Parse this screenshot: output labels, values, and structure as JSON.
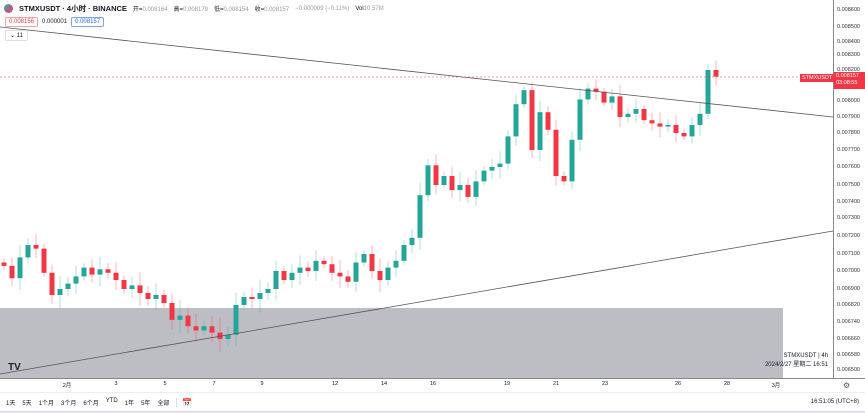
{
  "header": {
    "symbol_title": "STMXUSDT · 4小时 · BINANCE",
    "open_label": "开=",
    "open": "0.008164",
    "high_label": "高=",
    "high": "0.008179",
    "low_label": "低=",
    "low": "0.008154",
    "close_label": "收=",
    "close": "0.008157",
    "change": "−0.000009 (−0.11%)",
    "vol_label": "Vol",
    "vol": "10.57M"
  },
  "order": {
    "sell": "0.008156",
    "spread": "0.000001",
    "buy": "0.008157"
  },
  "indicators_toggle": {
    "label": "⌄ 11"
  },
  "price_axis": {
    "ticks": [
      "0.008600",
      "0.008500",
      "0.008400",
      "0.008300",
      "0.008200",
      "0.008000",
      "0.007900",
      "0.007800",
      "0.007700",
      "0.007600",
      "0.007500",
      "0.007400",
      "0.007300",
      "0.007200",
      "0.007100",
      "0.007000",
      "0.006900",
      "0.006820",
      "0.006740",
      "0.006660",
      "0.006580",
      "0.006500"
    ],
    "current_price": "0.008157",
    "countdown": "03:08:55",
    "symbol_tag": "STMXUSDT"
  },
  "time_axis": {
    "labels": [
      "2月",
      "3",
      "5",
      "7",
      "9",
      "12",
      "14",
      "16",
      "19",
      "21",
      "23",
      "26",
      "28",
      "3月"
    ]
  },
  "chart_data": {
    "type": "candlestick",
    "price_scale": 1e-06,
    "colors": {
      "up": "#26a69a",
      "down": "#f23645"
    },
    "close": [
      7030,
      6960,
      7080,
      7150,
      7130,
      6990,
      6870,
      6900,
      6930,
      6970,
      7020,
      6980,
      7010,
      6990,
      6950,
      6900,
      6920,
      6880,
      6850,
      6870,
      6830,
      6750,
      6770,
      6720,
      6700,
      6720,
      6690,
      6660,
      6680,
      6820,
      6860,
      6850,
      6880,
      6900,
      7000,
      6950,
      6990,
      7020,
      7000,
      7060,
      7040,
      6990,
      6970,
      6940,
      7050,
      7100,
      7000,
      6950,
      7020,
      7060,
      7150,
      7190,
      7440,
      7610,
      7500,
      7550,
      7470,
      7500,
      7430,
      7520,
      7580,
      7600,
      7620,
      7780,
      7980,
      8070,
      7700,
      7930,
      7820,
      7550,
      7520,
      7760,
      8010,
      8080,
      8060,
      7990,
      8030,
      7900,
      7920,
      7950,
      7880,
      7860,
      7840,
      7850,
      7800,
      7780,
      7850,
      7920,
      8200,
      8157
    ]
  },
  "overlay": {
    "watermark": "TV",
    "symbol_interval": "STMXUSDT | 4h",
    "datetime": "2024/2/27 星期二 16:51"
  },
  "toolbar": {
    "ranges": [
      "1天",
      "5天",
      "1个月",
      "3个月",
      "6个月",
      "YTD",
      "1年",
      "5年",
      "全部"
    ],
    "clock": "16:51:05 (UTC+8)"
  }
}
